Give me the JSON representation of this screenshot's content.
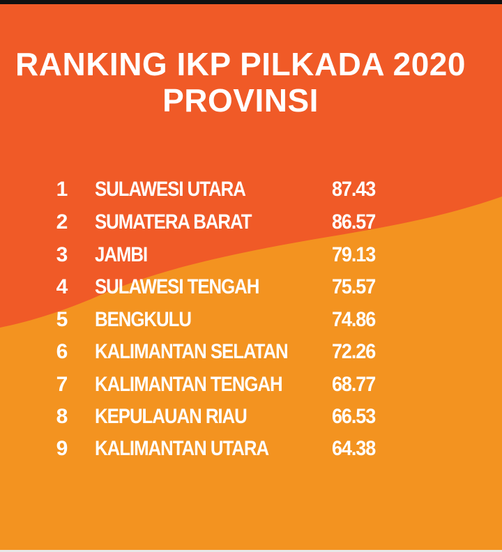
{
  "colors": {
    "background_top": "#f05a27",
    "background_bottom": "#f39320",
    "text": "#ffffff"
  },
  "title": {
    "line1": "RANKING IKP PILKADA 2020",
    "line2": "PROVINSI"
  },
  "ranking": [
    {
      "rank": "1",
      "province": "SULAWESI UTARA",
      "score": "87.43"
    },
    {
      "rank": "2",
      "province": "SUMATERA BARAT",
      "score": "86.57"
    },
    {
      "rank": "3",
      "province": "JAMBI",
      "score": "79.13"
    },
    {
      "rank": "4",
      "province": "SULAWESI TENGAH",
      "score": "75.57"
    },
    {
      "rank": "5",
      "province": "BENGKULU",
      "score": "74.86"
    },
    {
      "rank": "6",
      "province": "KALIMANTAN SELATAN",
      "score": "72.26"
    },
    {
      "rank": "7",
      "province": "KALIMANTAN TENGAH",
      "score": "68.77"
    },
    {
      "rank": "8",
      "province": "KEPULAUAN RIAU",
      "score": "66.53"
    },
    {
      "rank": "9",
      "province": "KALIMANTAN UTARA",
      "score": "64.38"
    }
  ]
}
